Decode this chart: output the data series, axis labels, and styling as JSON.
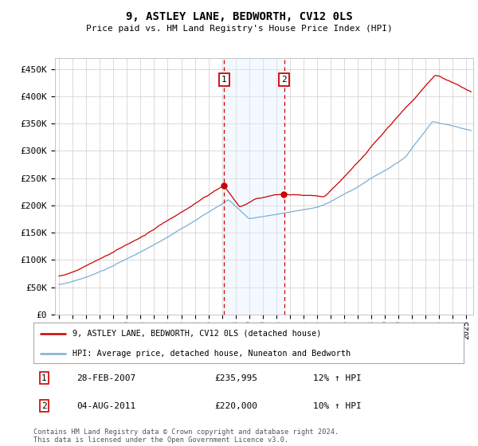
{
  "title": "9, ASTLEY LANE, BEDWORTH, CV12 0LS",
  "subtitle": "Price paid vs. HM Land Registry's House Price Index (HPI)",
  "ylabel_ticks": [
    "£0",
    "£50K",
    "£100K",
    "£150K",
    "£200K",
    "£250K",
    "£300K",
    "£350K",
    "£400K",
    "£450K"
  ],
  "ytick_values": [
    0,
    50000,
    100000,
    150000,
    200000,
    250000,
    300000,
    350000,
    400000,
    450000
  ],
  "ylim": [
    0,
    470000
  ],
  "xlim_start": 1994.7,
  "xlim_end": 2025.5,
  "hpi_color": "#7bafd4",
  "price_color": "#cc0000",
  "sale1_x": 2007.15,
  "sale2_x": 2011.58,
  "sale1_y": 235995,
  "sale2_y": 220000,
  "legend_line1": "9, ASTLEY LANE, BEDWORTH, CV12 0LS (detached house)",
  "legend_line2": "HPI: Average price, detached house, Nuneaton and Bedworth",
  "table_row1_date": "28-FEB-2007",
  "table_row1_price": "£235,995",
  "table_row1_hpi": "12% ↑ HPI",
  "table_row2_date": "04-AUG-2011",
  "table_row2_price": "£220,000",
  "table_row2_hpi": "10% ↑ HPI",
  "footer": "Contains HM Land Registry data © Crown copyright and database right 2024.\nThis data is licensed under the Open Government Licence v3.0.",
  "background_color": "#ffffff",
  "grid_color": "#cccccc",
  "shade_color": "#ddeeff"
}
